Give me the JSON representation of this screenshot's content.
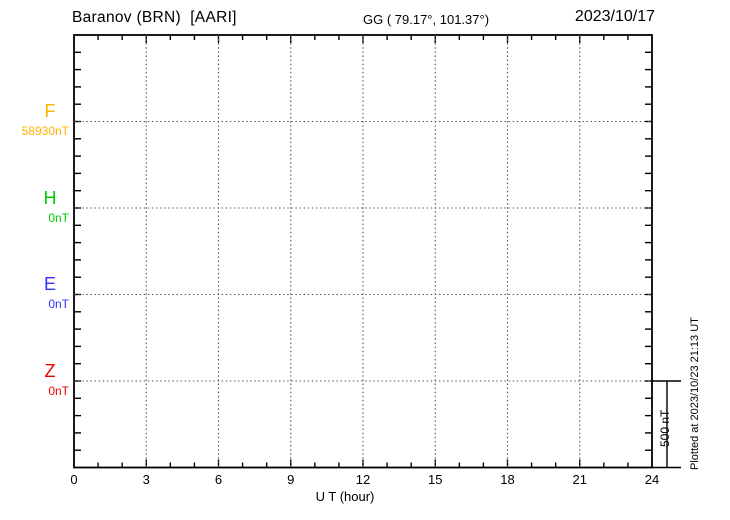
{
  "header": {
    "station_title": "Baranov (BRN)  [AARI]",
    "geographic_coords": "GG ( 79.17°, 101.37°)",
    "date": "2023/10/17"
  },
  "chart_data": {
    "type": "line",
    "title": "Baranov (BRN)  [AARI]",
    "station": "Baranov",
    "station_code": "BRN",
    "institute": "AARI",
    "date": "2023/10/17",
    "xlabel": "U T (hour)",
    "xlim": [
      0,
      24
    ],
    "x_ticks_major": [
      0,
      3,
      6,
      9,
      12,
      15,
      18,
      21,
      24
    ],
    "x_tick_labels": [
      "0",
      "3",
      "6",
      "9",
      "12",
      "15",
      "18",
      "21",
      "24"
    ],
    "x_minor_step_hours": 1,
    "y_minor_divisions": 25,
    "grid": "dotted vertical lines every 3 hours; dotted horizontal line at each component baseline",
    "components": [
      {
        "name": "F",
        "baseline_label": "58930nT",
        "baseline_nT": 58930,
        "color": "#FFB300"
      },
      {
        "name": "H",
        "baseline_label": "0nT",
        "baseline_nT": 0,
        "color": "#00CC00"
      },
      {
        "name": "E",
        "baseline_label": "0nT",
        "baseline_nT": 0,
        "color": "#3333FF"
      },
      {
        "name": "Z",
        "baseline_label": "0nT",
        "baseline_nT": 0,
        "color": "#EE0000"
      }
    ],
    "series": [],
    "note": "baselines only, no trace data drawn"
  },
  "scale_bar": {
    "label": "500 nT",
    "span_nT": 500
  },
  "footer": {
    "plotted_at": "Plotted at 2023/10/23 21:13 UT"
  }
}
